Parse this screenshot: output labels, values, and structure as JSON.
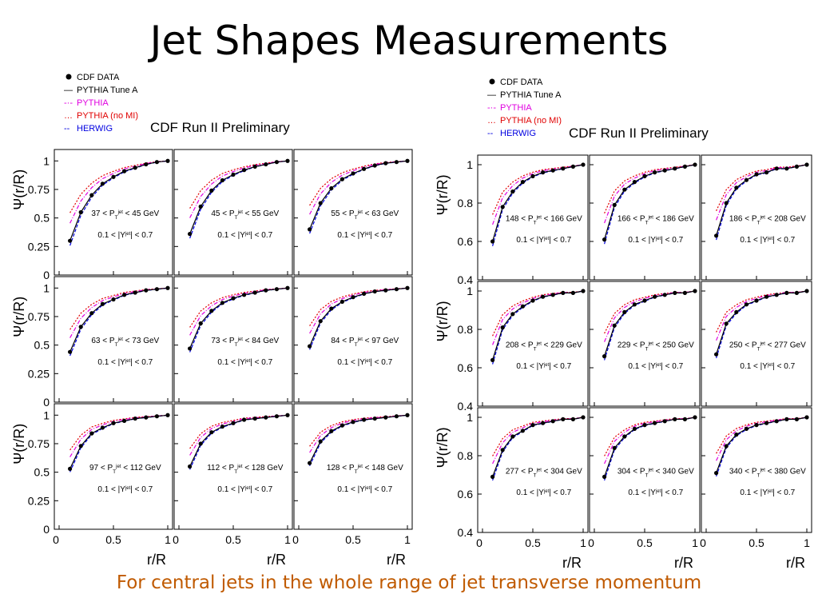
{
  "slide": {
    "title": "Jet Shapes Measurements",
    "caption": "For central jets in the whole range of jet transverse momentum"
  },
  "colors": {
    "data": "#000000",
    "tuneA": "#000000",
    "pythia": "#e000e0",
    "pythia_nomi": "#e00000",
    "herwig": "#0000e0"
  },
  "chart_data": [
    {
      "type": "line",
      "title": "CDF Run II Preliminary",
      "ylabel": "Ψ(r/R)",
      "xlabel": "r/R",
      "xlim": [
        0,
        1
      ],
      "ylim": [
        0,
        1.1
      ],
      "grid": false,
      "legend": [
        "CDF DATA",
        "PYTHIA Tune A",
        "PYTHIA",
        "PYTHIA (no MI)",
        "HERWIG"
      ],
      "legend_placement": "top-left",
      "x_ticks": [
        "0",
        "0.5",
        "1"
      ],
      "y_ticks": [
        "0",
        "0.25",
        "0.5",
        "0.75",
        "1"
      ],
      "eta_label": "0.1 < |Y^jet| < 0.7",
      "x": [
        0.1,
        0.2,
        0.3,
        0.4,
        0.5,
        0.6,
        0.7,
        0.8,
        0.9,
        1.0
      ],
      "panels": [
        {
          "label": "37 < P_T^jet < 45 GeV",
          "y": [
            0.3,
            0.55,
            0.7,
            0.8,
            0.86,
            0.91,
            0.94,
            0.97,
            0.99,
            1.0
          ]
        },
        {
          "label": "45 < P_T^jet < 55 GeV",
          "y": [
            0.36,
            0.6,
            0.74,
            0.83,
            0.88,
            0.92,
            0.95,
            0.97,
            0.99,
            1.0
          ]
        },
        {
          "label": "55 < P_T^jet < 63 GeV",
          "y": [
            0.4,
            0.63,
            0.76,
            0.84,
            0.89,
            0.93,
            0.96,
            0.98,
            0.99,
            1.0
          ]
        },
        {
          "label": "63 < P_T^jet < 73 GeV",
          "y": [
            0.44,
            0.66,
            0.78,
            0.86,
            0.9,
            0.94,
            0.96,
            0.98,
            0.99,
            1.0
          ]
        },
        {
          "label": "73 < P_T^jet < 84 GeV",
          "y": [
            0.47,
            0.69,
            0.8,
            0.87,
            0.91,
            0.94,
            0.96,
            0.98,
            0.99,
            1.0
          ]
        },
        {
          "label": "84 < P_T^jet < 97 GeV",
          "y": [
            0.49,
            0.71,
            0.82,
            0.88,
            0.92,
            0.95,
            0.97,
            0.98,
            0.99,
            1.0
          ]
        },
        {
          "label": "97 < P_T^jet < 112 GeV",
          "y": [
            0.53,
            0.73,
            0.84,
            0.89,
            0.93,
            0.95,
            0.97,
            0.98,
            0.99,
            1.0
          ]
        },
        {
          "label": "112 < P_T^jet < 128 GeV",
          "y": [
            0.55,
            0.75,
            0.85,
            0.9,
            0.93,
            0.96,
            0.97,
            0.98,
            0.99,
            1.0
          ]
        },
        {
          "label": "128 < P_T^jet < 148 GeV",
          "y": [
            0.58,
            0.77,
            0.86,
            0.91,
            0.94,
            0.96,
            0.97,
            0.98,
            0.99,
            1.0
          ]
        }
      ]
    },
    {
      "type": "line",
      "title": "CDF Run II Preliminary",
      "ylabel": "Ψ(r/R)",
      "xlabel": "r/R",
      "xlim": [
        0,
        1
      ],
      "ylim": [
        0.4,
        1.05
      ],
      "grid": false,
      "legend": [
        "CDF DATA",
        "PYTHIA Tune A",
        "PYTHIA",
        "PYTHIA (no MI)",
        "HERWIG"
      ],
      "legend_placement": "top-left",
      "x_ticks": [
        "0",
        "0.5",
        "1"
      ],
      "y_ticks": [
        "0.4",
        "0.6",
        "0.8",
        "1"
      ],
      "eta_label": "0.1 < |Y^jet| < 0.7",
      "x": [
        0.1,
        0.2,
        0.3,
        0.4,
        0.5,
        0.6,
        0.7,
        0.8,
        0.9,
        1.0
      ],
      "panels": [
        {
          "label": "148 < P_T^jet < 166 GeV",
          "y": [
            0.6,
            0.78,
            0.86,
            0.91,
            0.94,
            0.96,
            0.97,
            0.98,
            0.99,
            1.0
          ]
        },
        {
          "label": "166 < P_T^jet < 186 GeV",
          "y": [
            0.61,
            0.79,
            0.87,
            0.91,
            0.94,
            0.96,
            0.97,
            0.98,
            0.99,
            1.0
          ]
        },
        {
          "label": "186 < P_T^jet < 208 GeV",
          "y": [
            0.63,
            0.8,
            0.88,
            0.92,
            0.95,
            0.96,
            0.98,
            0.98,
            0.99,
            1.0
          ]
        },
        {
          "label": "208 < P_T^jet < 229 GeV",
          "y": [
            0.64,
            0.81,
            0.88,
            0.92,
            0.95,
            0.97,
            0.98,
            0.99,
            0.99,
            1.0
          ]
        },
        {
          "label": "229 < P_T^jet < 250 GeV",
          "y": [
            0.66,
            0.82,
            0.89,
            0.93,
            0.95,
            0.97,
            0.98,
            0.99,
            0.99,
            1.0
          ]
        },
        {
          "label": "250 < P_T^jet < 277 GeV",
          "y": [
            0.67,
            0.83,
            0.89,
            0.93,
            0.95,
            0.97,
            0.98,
            0.99,
            0.99,
            1.0
          ]
        },
        {
          "label": "277 < P_T^jet < 304 GeV",
          "y": [
            0.69,
            0.83,
            0.9,
            0.93,
            0.96,
            0.97,
            0.98,
            0.99,
            0.99,
            1.0
          ]
        },
        {
          "label": "304 < P_T^jet < 340 GeV",
          "y": [
            0.69,
            0.84,
            0.9,
            0.94,
            0.96,
            0.97,
            0.98,
            0.99,
            0.99,
            1.0
          ]
        },
        {
          "label": "340 < P_T^jet < 380 GeV",
          "y": [
            0.71,
            0.85,
            0.91,
            0.94,
            0.96,
            0.97,
            0.98,
            0.99,
            0.99,
            1.0
          ]
        }
      ]
    }
  ]
}
